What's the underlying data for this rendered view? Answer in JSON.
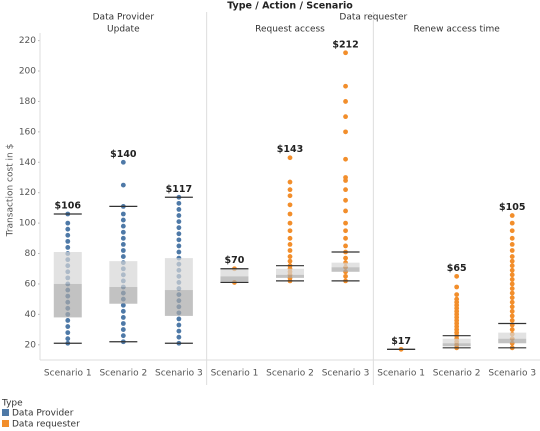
{
  "chart_data": {
    "type": "box",
    "title": "Type  /  Action  /  Scenario",
    "ylabel": "Transaction cost in $",
    "ylim": [
      10,
      225
    ],
    "yticks": [
      20,
      40,
      60,
      80,
      100,
      120,
      140,
      160,
      180,
      200,
      220
    ],
    "legend_title": "Type",
    "groups": [
      {
        "name": "Data Provider",
        "color": "#4e79a7",
        "panels": [
          {
            "name": "Update",
            "scenarios": [
              {
                "name": "Scenario 1",
                "whisker_low": 21,
                "q1": 38,
                "median": 60,
                "q3": 81,
                "whisker_high": 106,
                "max": 106,
                "max_label": "$106",
                "points": [
                  21,
                  24,
                  28,
                  32,
                  36,
                  40,
                  44,
                  48,
                  52,
                  56,
                  60,
                  64,
                  68,
                  72,
                  76,
                  80,
                  84,
                  88,
                  92,
                  96,
                  100,
                  106
                ]
              },
              {
                "name": "Scenario 2",
                "whisker_low": 22,
                "q1": 47,
                "median": 58,
                "q3": 75,
                "whisker_high": 111,
                "max": 140,
                "max_label": "$140",
                "points": [
                  22,
                  26,
                  30,
                  34,
                  38,
                  42,
                  46,
                  50,
                  54,
                  58,
                  62,
                  66,
                  70,
                  74,
                  78,
                  82,
                  86,
                  90,
                  94,
                  98,
                  102,
                  106,
                  111,
                  125,
                  140
                ]
              },
              {
                "name": "Scenario 3",
                "whisker_low": 21,
                "q1": 39,
                "median": 56,
                "q3": 77,
                "whisker_high": 117,
                "max": 117,
                "max_label": "$117",
                "points": [
                  21,
                  25,
                  29,
                  33,
                  37,
                  41,
                  45,
                  49,
                  53,
                  57,
                  61,
                  65,
                  69,
                  73,
                  77,
                  81,
                  85,
                  89,
                  93,
                  97,
                  101,
                  105,
                  109,
                  113,
                  117
                ]
              }
            ]
          }
        ]
      },
      {
        "name": "Data requester",
        "color": "#f28e2b",
        "panels": [
          {
            "name": "Request access",
            "scenarios": [
              {
                "name": "Scenario 1",
                "whisker_low": 61,
                "q1": 61,
                "median": 65,
                "q3": 70,
                "whisker_high": 70,
                "max": 70,
                "max_label": "$70",
                "points": [
                  61,
                  70
                ]
              },
              {
                "name": "Scenario 2",
                "whisker_low": 62,
                "q1": 64,
                "median": 66,
                "q3": 70,
                "whisker_high": 72,
                "max": 143,
                "max_label": "$143",
                "points": [
                  62,
                  64,
                  66,
                  68,
                  70,
                  72,
                  75,
                  78,
                  82,
                  86,
                  90,
                  95,
                  100,
                  106,
                  112,
                  118,
                  122,
                  127,
                  143
                ]
              },
              {
                "name": "Scenario 3",
                "whisker_low": 62,
                "q1": 68,
                "median": 71,
                "q3": 74,
                "whisker_high": 81,
                "max": 212,
                "max_label": "$212",
                "points": [
                  62,
                  65,
                  68,
                  71,
                  74,
                  77,
                  81,
                  85,
                  90,
                  95,
                  100,
                  108,
                  115,
                  122,
                  128,
                  130,
                  142,
                  160,
                  170,
                  180,
                  190,
                  212
                ]
              }
            ]
          },
          {
            "name": "Renew access time",
            "scenarios": [
              {
                "name": "Scenario 1",
                "whisker_low": 17,
                "q1": 17,
                "median": 17,
                "q3": 17,
                "whisker_high": 17,
                "max": 17,
                "max_label": "$17",
                "points": [
                  17
                ]
              },
              {
                "name": "Scenario 2",
                "whisker_low": 18,
                "q1": 19,
                "median": 21,
                "q3": 24,
                "whisker_high": 26,
                "max": 65,
                "max_label": "$65",
                "points": [
                  18,
                  20,
                  22,
                  24,
                  26,
                  28,
                  30,
                  32,
                  34,
                  36,
                  38,
                  40,
                  42,
                  44,
                  46,
                  48,
                  50,
                  53,
                  58,
                  65
                ]
              },
              {
                "name": "Scenario 3",
                "whisker_low": 18,
                "q1": 21,
                "median": 24,
                "q3": 28,
                "whisker_high": 34,
                "max": 105,
                "max_label": "$105",
                "points": [
                  18,
                  21,
                  24,
                  27,
                  30,
                  33,
                  36,
                  39,
                  42,
                  45,
                  48,
                  51,
                  54,
                  57,
                  60,
                  63,
                  66,
                  69,
                  72,
                  75,
                  78,
                  82,
                  86,
                  90,
                  95,
                  100,
                  105
                ]
              }
            ]
          }
        ]
      }
    ]
  }
}
